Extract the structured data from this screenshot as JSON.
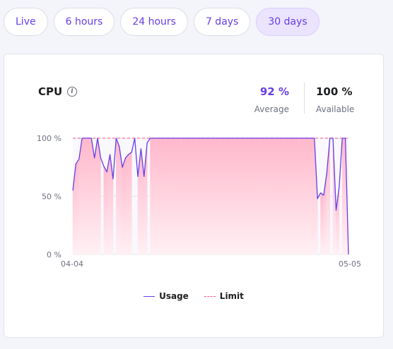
{
  "tabs": [
    {
      "label": "Live",
      "active": false
    },
    {
      "label": "6 hours",
      "active": false
    },
    {
      "label": "24 hours",
      "active": false
    },
    {
      "label": "7 days",
      "active": false
    },
    {
      "label": "30 days",
      "active": true
    }
  ],
  "card": {
    "title": "CPU",
    "info_icon": "info-icon",
    "average": {
      "value": "92 %",
      "label": "Average"
    },
    "available": {
      "value": "100 %",
      "label": "Available"
    }
  },
  "colors": {
    "accent": "#673de6",
    "limit": "#fc5185",
    "fill_top": "#ffb8cc",
    "fill_bottom": "#fff0f4"
  },
  "chart_data": {
    "type": "area",
    "x_tick_labels": [
      "04-04",
      "05-05"
    ],
    "y_tick_labels": [
      "100 %",
      "50 %",
      "0 %"
    ],
    "ylim": [
      0,
      100
    ],
    "grid": true,
    "legend_position": "bottom-center",
    "series": [
      {
        "name": "Usage",
        "color": "#673de6",
        "values": [
          55,
          78,
          82,
          100,
          100,
          100,
          100,
          83,
          100,
          83,
          76,
          71,
          86,
          65,
          100,
          93,
          75,
          83,
          86,
          88,
          100,
          67,
          91,
          67,
          96,
          100,
          100,
          100,
          100,
          100,
          100,
          100,
          100,
          100,
          100,
          100,
          100,
          100,
          100,
          100,
          100,
          100,
          100,
          100,
          100,
          100,
          100,
          100,
          100,
          100,
          100,
          100,
          100,
          100,
          100,
          100,
          100,
          100,
          100,
          100,
          100,
          100,
          100,
          100,
          100,
          100,
          100,
          100,
          100,
          100,
          100,
          100,
          100,
          100,
          100,
          100,
          100,
          100,
          100,
          48,
          53,
          51,
          70,
          100,
          100,
          38,
          58,
          100,
          100,
          0
        ]
      },
      {
        "name": "Limit",
        "color": "#fc5185",
        "value": 100
      }
    ],
    "gaps": [
      [
        9,
        10
      ],
      [
        13,
        14
      ],
      [
        19,
        21
      ],
      [
        24,
        25
      ],
      [
        79,
        80
      ],
      [
        83,
        84
      ],
      [
        86,
        87
      ]
    ]
  }
}
